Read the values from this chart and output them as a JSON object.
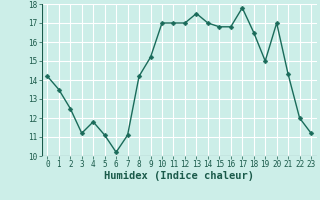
{
  "x": [
    0,
    1,
    2,
    3,
    4,
    5,
    6,
    7,
    8,
    9,
    10,
    11,
    12,
    13,
    14,
    15,
    16,
    17,
    18,
    19,
    20,
    21,
    22,
    23
  ],
  "y": [
    14.2,
    13.5,
    12.5,
    11.2,
    11.8,
    11.1,
    10.2,
    11.1,
    14.2,
    15.2,
    17.0,
    17.0,
    17.0,
    17.5,
    17.0,
    16.8,
    16.8,
    17.8,
    16.5,
    15.0,
    17.0,
    14.3,
    12.0,
    11.2
  ],
  "xlabel": "Humidex (Indice chaleur)",
  "bg_color": "#cceee8",
  "line_color": "#1a6b5a",
  "marker_color": "#1a6b5a",
  "grid_color": "#b8ddd8",
  "ylim": [
    10,
    18
  ],
  "xlim": [
    -0.5,
    23.5
  ],
  "yticks": [
    10,
    11,
    12,
    13,
    14,
    15,
    16,
    17,
    18
  ],
  "xticks": [
    0,
    1,
    2,
    3,
    4,
    5,
    6,
    7,
    8,
    9,
    10,
    11,
    12,
    13,
    14,
    15,
    16,
    17,
    18,
    19,
    20,
    21,
    22,
    23
  ],
  "tick_fontsize": 5.5,
  "xlabel_fontsize": 7.5,
  "line_width": 1.0,
  "marker_size": 2.5
}
